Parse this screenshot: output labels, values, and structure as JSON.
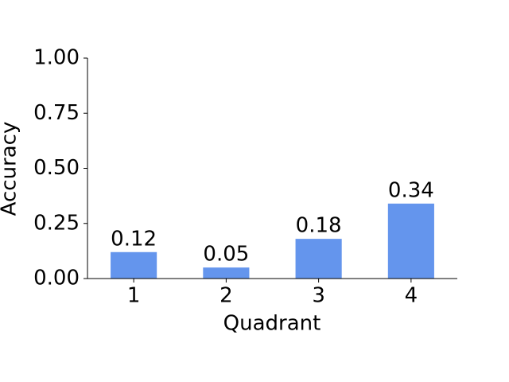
{
  "chart_data": {
    "type": "bar",
    "x_label": "Quadrant",
    "y_label": "Accuracy",
    "categories": [
      "1",
      "2",
      "3",
      "4"
    ],
    "values": [
      0.12,
      0.05,
      0.18,
      0.34
    ],
    "color": "#6495ed",
    "ylim": [
      0,
      1
    ],
    "yticks": [
      {
        "value": 0,
        "label": "0.00"
      },
      {
        "value": 0.25,
        "label": "0.25"
      },
      {
        "value": 0.5,
        "label": "0.50"
      },
      {
        "value": 0.75,
        "label": "0.75"
      },
      {
        "value": 1,
        "label": "1.00"
      }
    ],
    "grid": false
  }
}
